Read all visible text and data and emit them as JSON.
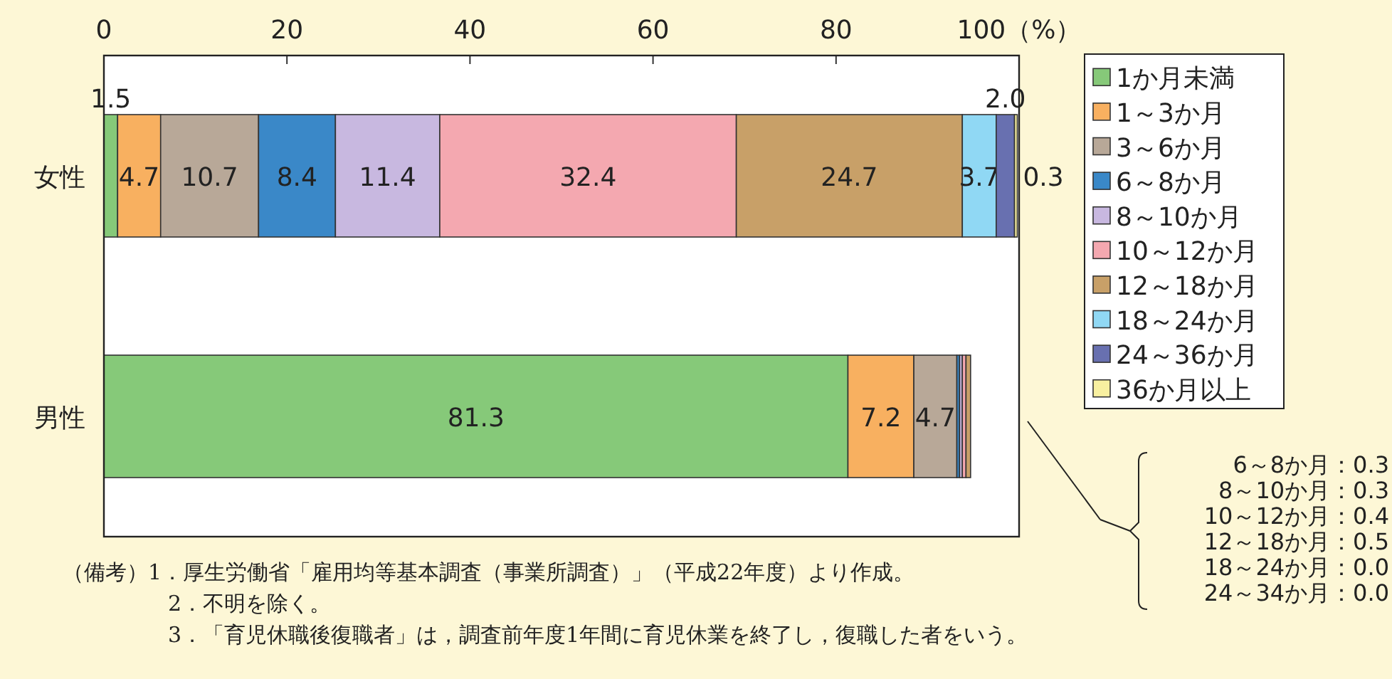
{
  "chart_data": {
    "type": "bar",
    "orientation": "horizontal",
    "stacked": true,
    "legend": "right",
    "categories": [
      "女性",
      "男性"
    ],
    "xlim": [
      0,
      100
    ],
    "xticks": [
      0,
      20,
      40,
      60,
      80,
      {
        "value": 100,
        "label": "100（%）"
      }
    ],
    "series": [
      {
        "name": "1か月未満",
        "color": "#86c979",
        "values": [
          1.5,
          81.3
        ],
        "value_labels": [
          "1.5",
          "81.3"
        ]
      },
      {
        "name": "1～3か月",
        "color": "#f8b060",
        "values": [
          4.7,
          7.2
        ],
        "value_labels": [
          "4.7",
          "7.2"
        ]
      },
      {
        "name": "3～6か月",
        "color": "#b8a898",
        "values": [
          10.7,
          4.7
        ],
        "value_labels": [
          "10.7",
          "4.7"
        ]
      },
      {
        "name": "6～8か月",
        "color": "#3a88c8",
        "values": [
          8.4,
          0.3
        ],
        "value_labels": [
          "8.4",
          null
        ]
      },
      {
        "name": "8～10か月",
        "color": "#c8b8e0",
        "values": [
          11.4,
          0.3
        ],
        "value_labels": [
          "11.4",
          null
        ]
      },
      {
        "name": "10～12か月",
        "color": "#f4a8b0",
        "values": [
          32.4,
          0.4
        ],
        "value_labels": [
          "32.4",
          null
        ]
      },
      {
        "name": "12～18か月",
        "color": "#c8a068",
        "values": [
          24.7,
          0.5
        ],
        "value_labels": [
          "24.7",
          null
        ]
      },
      {
        "name": "18～24か月",
        "color": "#90d8f4",
        "values": [
          3.7,
          0.0
        ],
        "value_labels": [
          "3.7",
          null
        ]
      },
      {
        "name": "24～36か月",
        "color": "#6870b0",
        "values": [
          2.0,
          0.0
        ],
        "value_labels": [
          "2.0",
          null
        ]
      },
      {
        "name": "36か月以上",
        "color": "#f8f0a0",
        "values": [
          0.3,
          null
        ],
        "value_labels": [
          "0.3",
          null
        ]
      }
    ],
    "annotations": [
      "（備考）1．厚生労働省「雇用均等基本調査（事業所調査）」（平成22年度）より作成。",
      "2．不明を除く。",
      "3．「育児休職後復職者」は，調査前年度1年間に育児休業を終了し，復職した者をいう。",
      "6～8か月：0.3",
      "8～10か月：0.3",
      "10～12か月：0.4",
      "12～18か月：0.5",
      "18～24か月：0.0",
      "24～34か月：0.0"
    ]
  }
}
